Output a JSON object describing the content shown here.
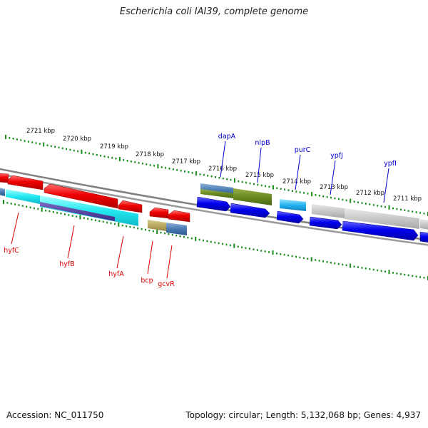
{
  "title": "Escherichia coli IAI39, complete genome",
  "footer": {
    "accession": "Accession: NC_011750",
    "summary": "Topology: circular; Length: 5,132,068 bp; Genes: 4,937"
  },
  "scale_labels": [
    "2721 kbp",
    "2720 kbp",
    "2719 kbp",
    "2718 kbp",
    "2717 kbp",
    "2716 kbp",
    "2715 kbp",
    "2714 kbp",
    "2713 kbp",
    "2712 kbp",
    "2711 kbp"
  ],
  "top_genes": [
    "dapA",
    "nlpB",
    "purC",
    "ypfJ",
    "ypfI"
  ],
  "bottom_genes": [
    "hyfC",
    "hyfB",
    "hyfA",
    "bcp",
    "gcvR"
  ],
  "colors": {
    "reverse_gene": "#ee0000",
    "forward_gene": "#0000ee",
    "scale_tick": "#1a8a1a",
    "backbone": "#7a7a7a"
  }
}
